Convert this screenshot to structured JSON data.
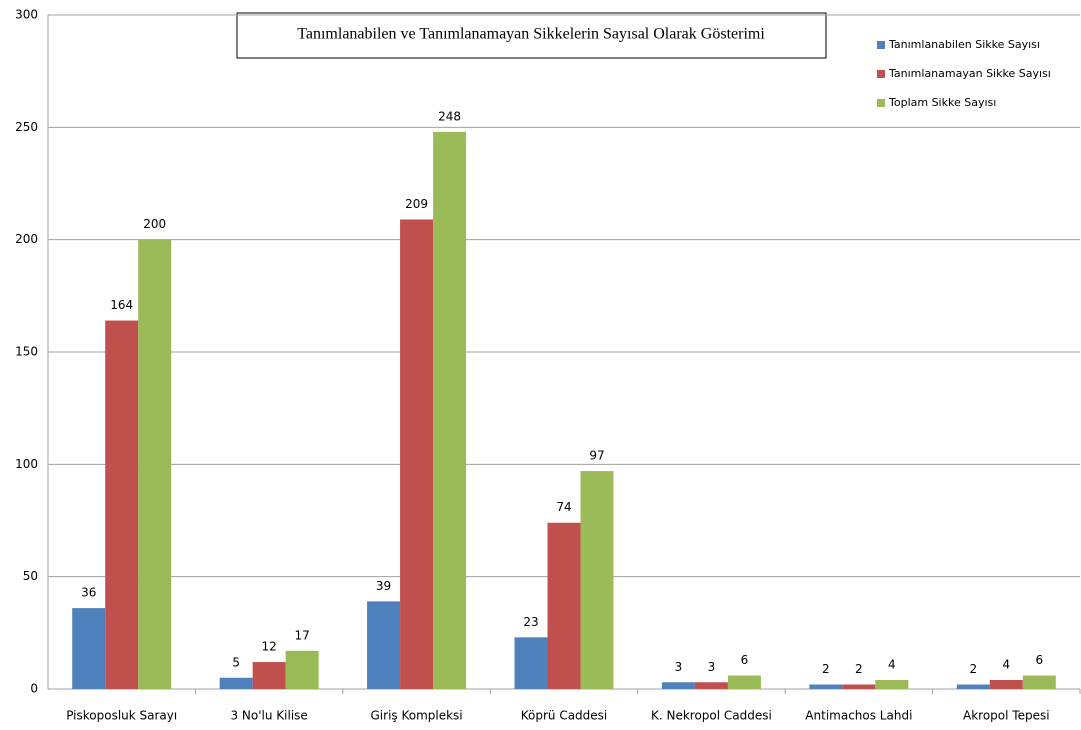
{
  "chart_data": {
    "type": "bar",
    "title": "Tanımlanabilen ve Tanımlanamayan Sikkelerin Sayısal Olarak Gösterimi",
    "categories": [
      "Piskoposluk Sarayı",
      "3 No'lu Kilise",
      "Giriş Kompleksi",
      "Köprü Caddesi",
      "K. Nekropol Caddesi",
      "Antimachos Lahdi",
      "Akropol Tepesi"
    ],
    "series": [
      {
        "name": "Tanımlanabilen Sikke Sayısı",
        "color": "#4f81bd",
        "values": [
          36,
          5,
          39,
          23,
          3,
          2,
          2
        ]
      },
      {
        "name": "Tanımlanamayan  Sikke Sayısı",
        "color": "#c0504d",
        "values": [
          164,
          12,
          209,
          74,
          3,
          2,
          4
        ]
      },
      {
        "name": "Toplam Sikke Sayısı",
        "color": "#9bbb59",
        "values": [
          200,
          17,
          248,
          97,
          6,
          4,
          6
        ]
      }
    ],
    "ylim": [
      0,
      300
    ],
    "yticks": [
      0,
      50,
      100,
      150,
      200,
      250,
      300
    ],
    "grid": true,
    "legend": "top-right"
  }
}
